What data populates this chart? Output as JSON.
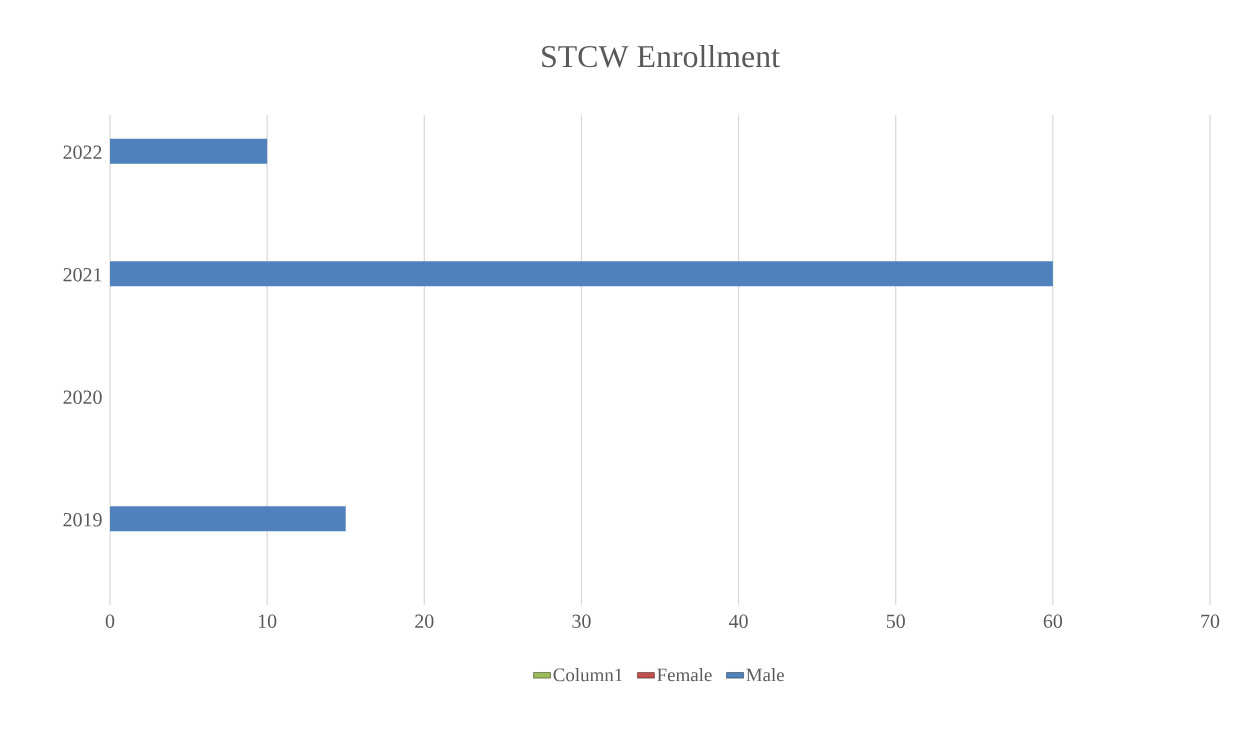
{
  "chart_data": {
    "type": "bar",
    "orientation": "horizontal",
    "title": "STCW Enrollment",
    "categories": [
      "2022",
      "2021",
      "2020",
      "2019"
    ],
    "series": [
      {
        "name": "Column1",
        "color": "#9bbb59",
        "values": [
          null,
          null,
          null,
          null
        ]
      },
      {
        "name": "Female",
        "color": "#c0504d",
        "values": [
          null,
          null,
          null,
          null
        ]
      },
      {
        "name": "Male",
        "color": "#4f81bd",
        "values": [
          10,
          60,
          null,
          15
        ]
      }
    ],
    "xlim": [
      0,
      70
    ],
    "xticks": [
      0,
      10,
      20,
      30,
      40,
      50,
      60,
      70
    ],
    "grid": "x",
    "legend": "bottom"
  }
}
